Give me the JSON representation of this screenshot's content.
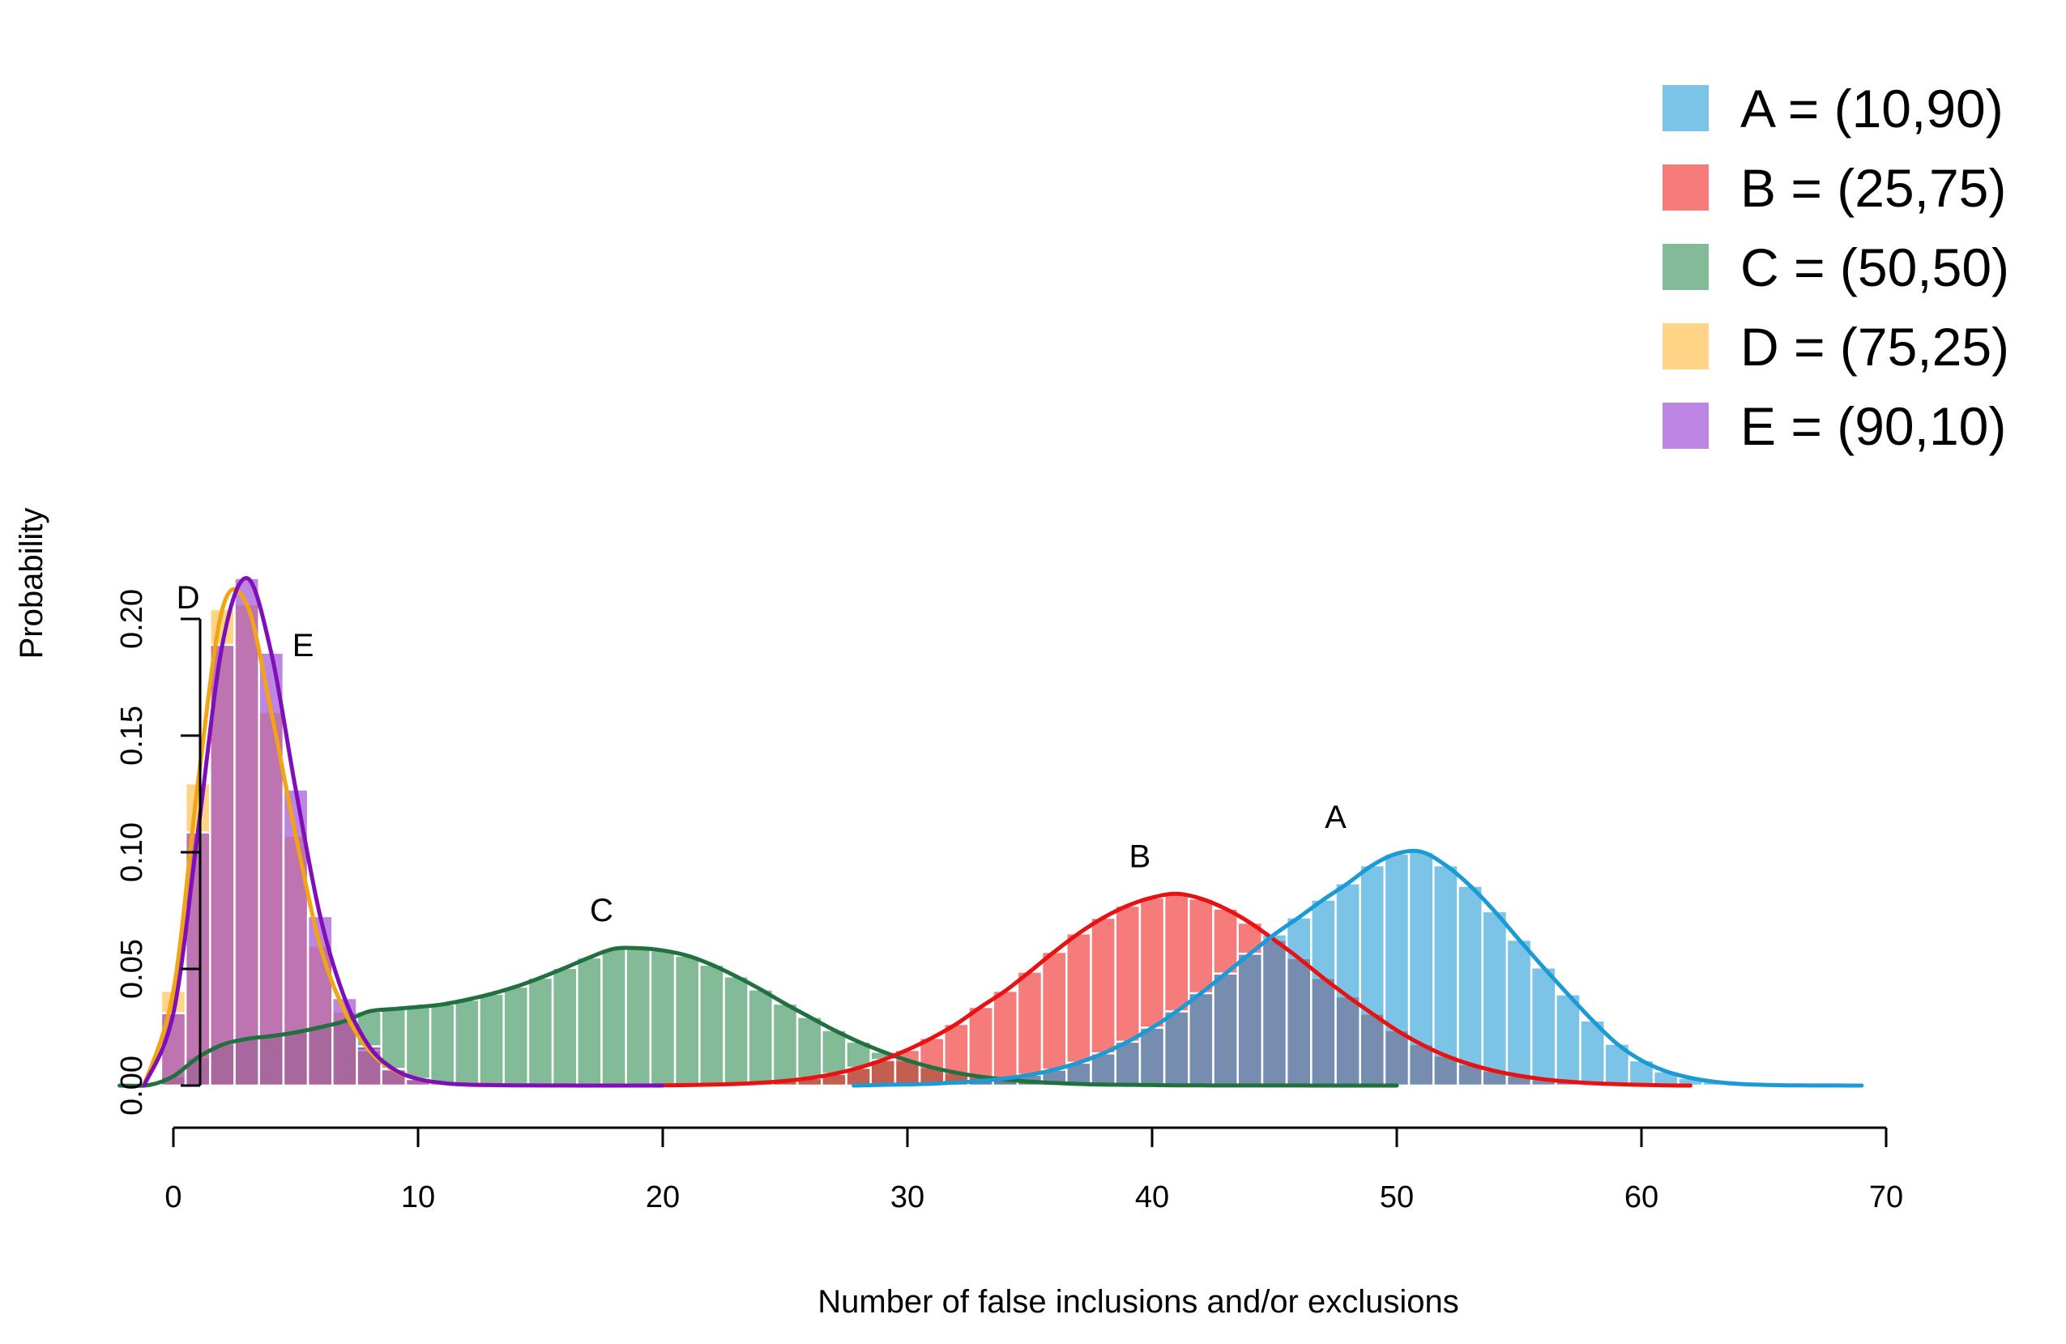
{
  "chart_data": {
    "type": "bar",
    "title": "",
    "xlabel": "Number of false inclusions and/or exclusions",
    "ylabel": "Probability",
    "xlim": [
      -2,
      70
    ],
    "ylim": [
      0,
      0.22
    ],
    "xticks": [
      0,
      10,
      20,
      30,
      40,
      50,
      60,
      70
    ],
    "xtick_labels": [
      "0",
      "10",
      "20",
      "30",
      "40",
      "50",
      "60",
      "70"
    ],
    "yticks": [
      0,
      0.05,
      0.1,
      0.15,
      0.2
    ],
    "ytick_labels": [
      "0.00",
      "0.05",
      "0.10",
      "0.15",
      "0.20"
    ],
    "grid": false,
    "legend_position": "top-right",
    "series": [
      {
        "key": "A",
        "name": "A = (10,90)",
        "label": "A",
        "bar_color": "#1b9ad6",
        "line_color": "#1b9ad6",
        "peak_label_at": [
          47.5,
          0.1105
        ],
        "x": [
          29,
          30,
          31,
          32,
          33,
          34,
          35,
          36,
          37,
          38,
          39,
          40,
          41,
          42,
          43,
          44,
          45,
          46,
          47,
          48,
          49,
          50,
          51,
          52,
          53,
          54,
          55,
          56,
          57,
          58,
          59,
          60,
          61,
          62,
          63,
          64,
          65,
          66,
          67,
          68
        ],
        "values": [
          0.0003,
          0.0005,
          0.0008,
          0.0013,
          0.002,
          0.0031,
          0.0046,
          0.0068,
          0.0098,
          0.0138,
          0.0188,
          0.0248,
          0.0318,
          0.0396,
          0.048,
          0.0565,
          0.0648,
          0.0721,
          0.0797,
          0.0867,
          0.0944,
          0.0994,
          0.1002,
          0.0944,
          0.0856,
          0.0747,
          0.0625,
          0.0506,
          0.0391,
          0.0279,
          0.0179,
          0.0108,
          0.0061,
          0.0033,
          0.0016,
          0.0007,
          0.0003,
          0.0001,
          5e-05,
          2e-05
        ]
      },
      {
        "key": "B",
        "name": "B = (25,75)",
        "label": "B",
        "bar_color": "#f01e1e",
        "line_color": "#e81212",
        "peak_label_at": [
          39.5,
          0.0935
        ],
        "x": [
          20,
          21,
          22,
          23,
          24,
          25,
          26,
          27,
          28,
          29,
          30,
          31,
          32,
          33,
          34,
          35,
          36,
          37,
          38,
          39,
          40,
          41,
          42,
          43,
          44,
          45,
          46,
          47,
          48,
          49,
          50,
          51,
          52,
          53,
          54,
          55,
          56,
          57,
          58,
          59,
          60,
          61
        ],
        "values": [
          0.0001,
          0.0002,
          0.0004,
          0.0007,
          0.0012,
          0.002,
          0.0032,
          0.005,
          0.0076,
          0.011,
          0.0153,
          0.0204,
          0.0264,
          0.0337,
          0.0406,
          0.0488,
          0.0573,
          0.0652,
          0.0719,
          0.0771,
          0.0806,
          0.0822,
          0.0801,
          0.0758,
          0.0698,
          0.0624,
          0.0546,
          0.0461,
          0.0382,
          0.0308,
          0.0237,
          0.0177,
          0.0128,
          0.0091,
          0.0063,
          0.0042,
          0.0027,
          0.0017,
          0.001,
          0.0006,
          0.0003,
          0.0001
        ]
      },
      {
        "key": "C",
        "name": "C = (50,50)",
        "label": "C",
        "bar_color": "#2a8a50",
        "line_color": "#217040",
        "peak_label_at": [
          17.5,
          0.0705
        ],
        "x": [
          -1,
          0,
          1,
          2,
          3,
          4,
          5,
          6,
          7,
          8,
          9,
          10,
          11,
          12,
          13,
          14,
          15,
          16,
          17,
          18,
          19,
          20,
          21,
          22,
          23,
          24,
          25,
          26,
          27,
          28,
          29,
          30,
          31,
          32,
          33,
          34,
          35,
          36,
          37,
          38,
          39,
          40,
          41,
          42,
          43,
          44,
          45,
          46,
          47,
          48,
          49
        ],
        "values": [
          0.0002,
          0.004,
          0.012,
          0.0175,
          0.02,
          0.0212,
          0.0228,
          0.025,
          0.0276,
          0.0318,
          0.0328,
          0.0337,
          0.0348,
          0.0368,
          0.0393,
          0.0424,
          0.0462,
          0.0504,
          0.0549,
          0.0586,
          0.0589,
          0.0579,
          0.0557,
          0.0518,
          0.0468,
          0.0412,
          0.0351,
          0.0294,
          0.0238,
          0.0188,
          0.0145,
          0.0108,
          0.0078,
          0.0055,
          0.0038,
          0.0026,
          0.0017,
          0.0011,
          0.0007,
          0.0004,
          0.0003,
          0.0002,
          0.0001,
          8e-05,
          5e-05,
          4e-05,
          3e-05,
          2e-05,
          1e-05,
          1e-05,
          1e-05
        ]
      },
      {
        "key": "D",
        "name": "D = (75,25)",
        "label": "D",
        "bar_color": "#ffb52e",
        "line_color": "#f2a413",
        "peak_label_at": [
          0.6,
          0.2045
        ],
        "x": [
          0,
          1,
          2,
          3,
          4,
          5,
          6,
          7,
          8,
          9,
          10,
          11,
          12,
          13,
          14,
          15,
          16,
          17,
          18,
          19
        ],
        "values": [
          0.0406,
          0.1295,
          0.2042,
          0.2063,
          0.1601,
          0.1071,
          0.0599,
          0.0318,
          0.0151,
          0.0067,
          0.0028,
          0.0011,
          0.0004,
          0.0002,
          0.0001,
          4e-05,
          2e-05,
          1e-05,
          1e-05,
          1e-05
        ]
      },
      {
        "key": "E",
        "name": "E = (90,10)",
        "label": "E",
        "bar_color": "#8f2ecf",
        "line_color": "#7f10b8",
        "peak_label_at": [
          5.3,
          0.184
        ],
        "x": [
          0,
          1,
          2,
          3,
          4,
          5,
          6,
          7,
          8,
          9,
          10,
          11,
          12,
          13,
          14,
          15,
          16,
          17,
          18,
          19
        ],
        "values": [
          0.031,
          0.1085,
          0.1889,
          0.2175,
          0.1855,
          0.1269,
          0.0726,
          0.0375,
          0.0168,
          0.0071,
          0.0028,
          0.0011,
          0.0004,
          0.0002,
          0.0001,
          4e-05,
          2e-05,
          1e-05,
          1e-05,
          1e-05
        ]
      }
    ]
  }
}
